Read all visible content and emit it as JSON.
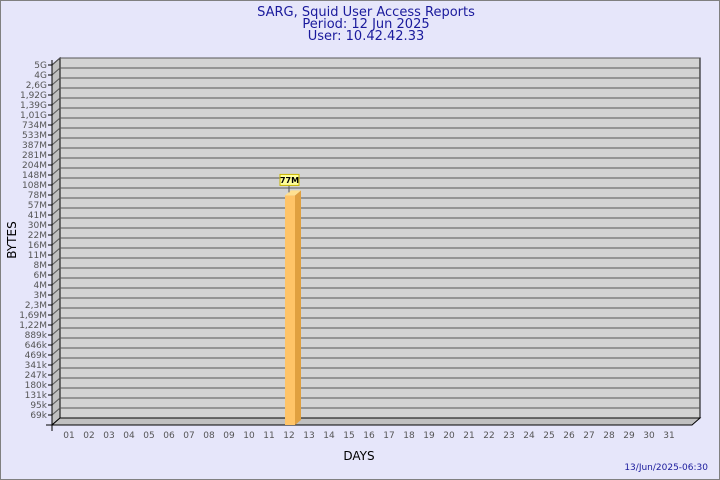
{
  "chart_data": {
    "type": "bar",
    "title": "SARG, Squid User Access Reports",
    "subtitle": [
      "Period: 12 Jun 2025",
      "User: 10.42.42.33"
    ],
    "xlabel": "DAYS",
    "ylabel": "BYTES",
    "yscale": "log",
    "grid": true,
    "y_ticks": [
      "5G",
      "4G",
      "2,6G",
      "1,92G",
      "1,39G",
      "1,01G",
      "734M",
      "533M",
      "387M",
      "281M",
      "204M",
      "148M",
      "108M",
      "78M",
      "57M",
      "41M",
      "30M",
      "22M",
      "16M",
      "11M",
      "8M",
      "6M",
      "4M",
      "3M",
      "2,3M",
      "1,69M",
      "1,22M",
      "889k",
      "646k",
      "469k",
      "341k",
      "247k",
      "180k",
      "131k",
      "95k",
      "69k"
    ],
    "categories": [
      "01",
      "02",
      "03",
      "04",
      "05",
      "06",
      "07",
      "08",
      "09",
      "10",
      "11",
      "12",
      "13",
      "14",
      "15",
      "16",
      "17",
      "18",
      "19",
      "20",
      "21",
      "22",
      "23",
      "24",
      "25",
      "26",
      "27",
      "28",
      "29",
      "30",
      "31"
    ],
    "values": [
      0,
      0,
      0,
      0,
      0,
      0,
      0,
      0,
      0,
      0,
      0,
      77000000,
      0,
      0,
      0,
      0,
      0,
      0,
      0,
      0,
      0,
      0,
      0,
      0,
      0,
      0,
      0,
      0,
      0,
      0,
      0
    ],
    "data_labels": {
      "12": "77M"
    },
    "colors": {
      "bar_front": "#ffc468",
      "bar_side": "#e0a040",
      "bar_top": "#ffe090",
      "plot_bg": "#d3d3d3",
      "label_bg": "#ffff99",
      "title": "#1a1a9c"
    }
  },
  "footer": {
    "timestamp": "13/Jun/2025-06:30"
  }
}
